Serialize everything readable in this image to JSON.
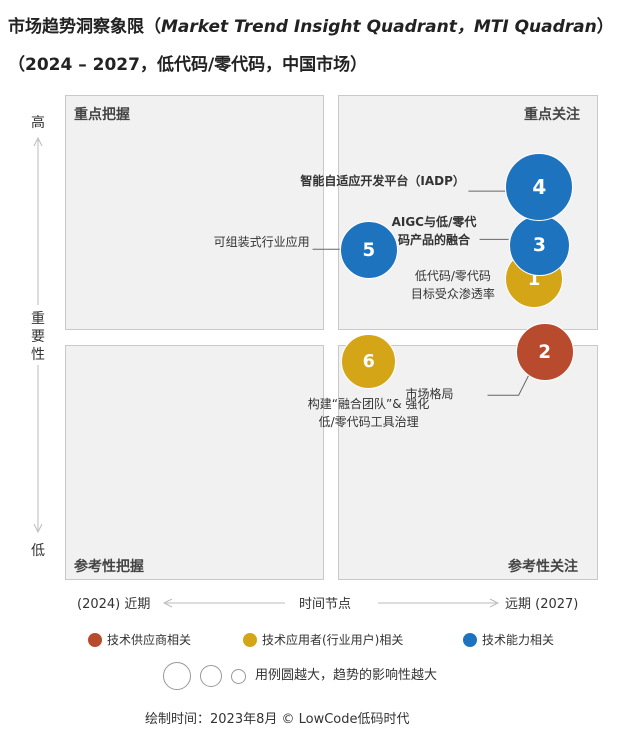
{
  "title": {
    "line1_cn": "市场趋势洞察象限（",
    "line1_en": "Market Trend Insight Quadrant，MTI Quadran",
    "line1_end": "）",
    "line2": "（2024 – 2027，低代码/零代码，中国市场）"
  },
  "quadrants": {
    "top_left": "重点把握",
    "top_right": "重点关注",
    "bottom_left": "参考性把握",
    "bottom_right": "参考性关注"
  },
  "y_axis": {
    "high": "高",
    "label": "重要性",
    "low": "低"
  },
  "x_axis": {
    "near": "(2024) 近期",
    "label": "时间节点",
    "far": "远期 (2027)"
  },
  "chart_data": {
    "type": "scatter",
    "title": "市场趋势洞察象限（Market Trend Insight Quadrant，MTI Quadran）",
    "subtitle": "（2024 – 2027，低代码/零代码，中国市场）",
    "xlabel": "时间节点",
    "ylabel": "重要性",
    "points": [
      {
        "id": "1",
        "label": "低代码/零代码目标受众渗透率",
        "label_lines": [
          "低代码/零代码",
          "目标受众渗透率"
        ],
        "category": "技术应用者(行业用户)相关",
        "color": "#d4a517",
        "x": 0.88,
        "y": 0.62,
        "size": 0.7
      },
      {
        "id": "2",
        "label": "市场格局",
        "label_lines": [
          "市场格局"
        ],
        "category": "技术供应商相关",
        "color": "#b84a2e",
        "x": 0.9,
        "y": 0.47,
        "size": 0.7
      },
      {
        "id": "3",
        "label": "AIGC与低/零代码产品的融合",
        "label_lines": [
          "AIGC与低/零代",
          "码产品的融合"
        ],
        "category": "技术能力相关",
        "color": "#1e73be",
        "x": 0.89,
        "y": 0.69,
        "size": 0.8
      },
      {
        "id": "4",
        "label": "智能自适应开发平台（IADP）",
        "label_lines": [
          "智能自适应开发平台（IADP）"
        ],
        "category": "技术能力相关",
        "color": "#1e73be",
        "x": 0.89,
        "y": 0.81,
        "size": 1.0
      },
      {
        "id": "5",
        "label": "可组装式行业应用",
        "label_lines": [
          "可组装式行业应用"
        ],
        "category": "技术能力相关",
        "color": "#1e73be",
        "x": 0.57,
        "y": 0.68,
        "size": 0.7
      },
      {
        "id": "6",
        "label": "构建“融合团队”& 强化低/零代码工具治理",
        "label_lines": [
          "构建“融合团队”& 强化",
          "低/零代码工具治理"
        ],
        "category": "技术应用者(行业用户)相关",
        "color": "#d4a517",
        "x": 0.57,
        "y": 0.45,
        "size": 0.6
      }
    ]
  },
  "legend": [
    {
      "label": "技术供应商相关",
      "color": "#b84a2e"
    },
    {
      "label": "技术应用者(行业用户)相关",
      "color": "#d4a517"
    },
    {
      "label": "技术能力相关",
      "color": "#1e73be"
    }
  ],
  "size_legend": "用例圆越大，趋势的影响性越大",
  "footer": "绘制时间：2023年8月    © LowCode低码时代"
}
